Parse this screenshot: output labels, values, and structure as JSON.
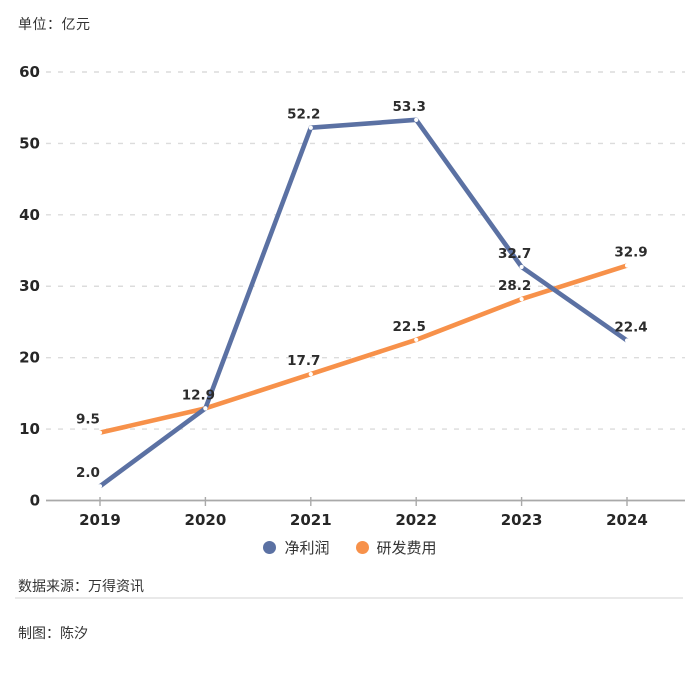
{
  "header": {
    "unit_label": "单位：亿元"
  },
  "chart_data": {
    "type": "line",
    "x": [
      "2019",
      "2020",
      "2021",
      "2022",
      "2023",
      "2024"
    ],
    "series": [
      {
        "name": "净利润",
        "color": "#5b71a3",
        "values": [
          2.0,
          12.9,
          52.2,
          53.3,
          32.7,
          22.4
        ],
        "labels": [
          "2.0",
          "12.9",
          "52.2",
          "53.3",
          "32.7",
          "22.4"
        ]
      },
      {
        "name": "研发费用",
        "color": "#f7914a",
        "values": [
          9.5,
          12.9,
          17.7,
          22.5,
          28.2,
          32.9
        ],
        "labels": [
          "9.5",
          "12.9",
          "17.7",
          "22.5",
          "28.2",
          "32.9"
        ]
      }
    ],
    "title": "",
    "xlabel": "",
    "ylabel": "亿元",
    "ylim": [
      0,
      60
    ],
    "yticks": [
      0,
      10,
      20,
      30,
      40,
      50,
      60
    ],
    "grid": "horizontal-dashed",
    "legend_position": "bottom-center",
    "point_marker": "small-white-dot",
    "value_labels_shown": true
  },
  "legend": {
    "items": [
      {
        "label": "净利润",
        "color": "#5b71a3"
      },
      {
        "label": "研发费用",
        "color": "#f7914a"
      }
    ]
  },
  "footer": {
    "source": "数据来源：万得资讯",
    "credit": "制图：陈汐"
  },
  "colors": {
    "net_profit_line": "#5b71a3",
    "rd_expense_line": "#f7914a",
    "gridline": "#dcdcdc",
    "axis_line": "#a9a9a9",
    "text": "#2c2c2c"
  }
}
